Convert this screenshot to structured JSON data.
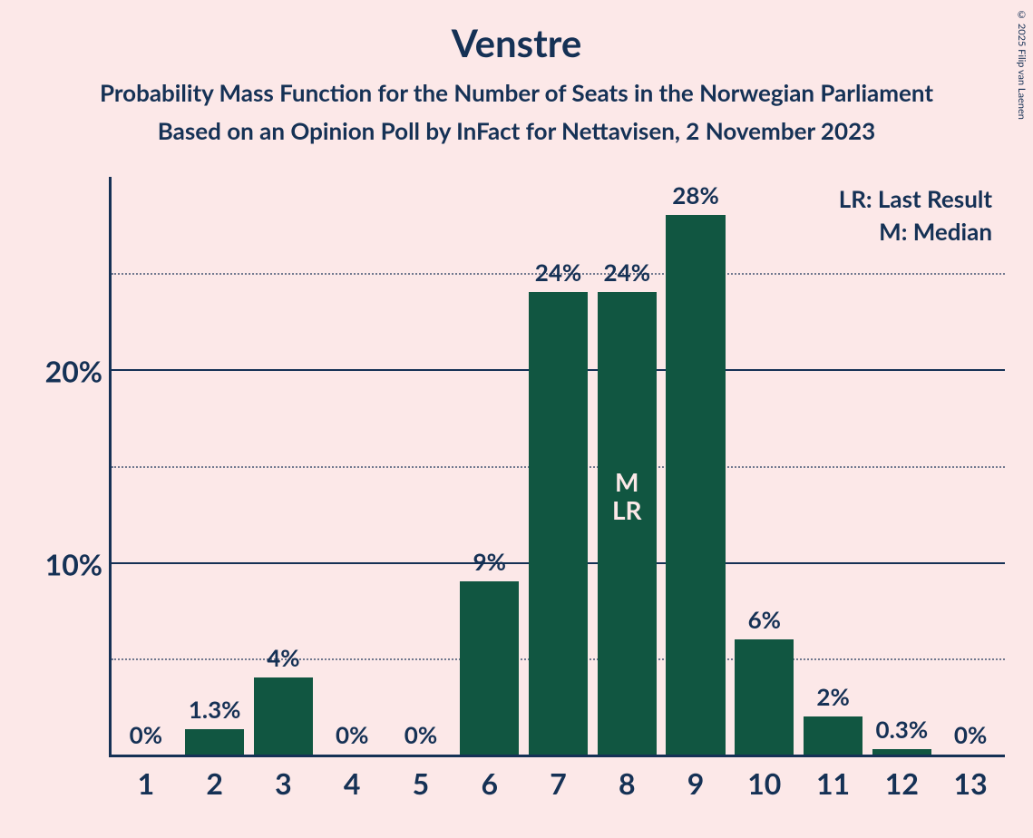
{
  "title": "Venstre",
  "subtitle1": "Probability Mass Function for the Number of Seats in the Norwegian Parliament",
  "subtitle2": "Based on an Opinion Poll by InFact for Nettavisen, 2 November 2023",
  "copyright": "© 2025 Filip van Laenen",
  "legend": {
    "lr": "LR: Last Result",
    "m": "M: Median"
  },
  "chart": {
    "type": "bar",
    "background_color": "#fce8e8",
    "bar_color": "#115641",
    "axis_color": "#153155",
    "text_color": "#153155",
    "inner_text_color": "#fce8e8",
    "title_fontsize": 42,
    "subtitle_fontsize": 26,
    "axis_label_fontsize": 32,
    "bar_label_fontsize": 26,
    "legend_fontsize": 26,
    "y": {
      "min": 0,
      "max": 30,
      "major_ticks": [
        10,
        20
      ],
      "major_labels": [
        "10%",
        "20%"
      ],
      "minor_ticks": [
        5,
        15,
        25
      ]
    },
    "bar_width_rel": 0.86,
    "categories": [
      "1",
      "2",
      "3",
      "4",
      "5",
      "6",
      "7",
      "8",
      "9",
      "10",
      "11",
      "12",
      "13"
    ],
    "values": [
      0,
      1.3,
      4,
      0,
      0,
      9,
      24,
      24,
      28,
      6,
      2,
      0.3,
      0
    ],
    "value_labels": [
      "0%",
      "1.3%",
      "4%",
      "0%",
      "0%",
      "9%",
      "24%",
      "24%",
      "28%",
      "6%",
      "2%",
      "0.3%",
      "0%"
    ],
    "median_index": 7,
    "lr_index": 7,
    "median_label": "M",
    "lr_label": "LR"
  }
}
